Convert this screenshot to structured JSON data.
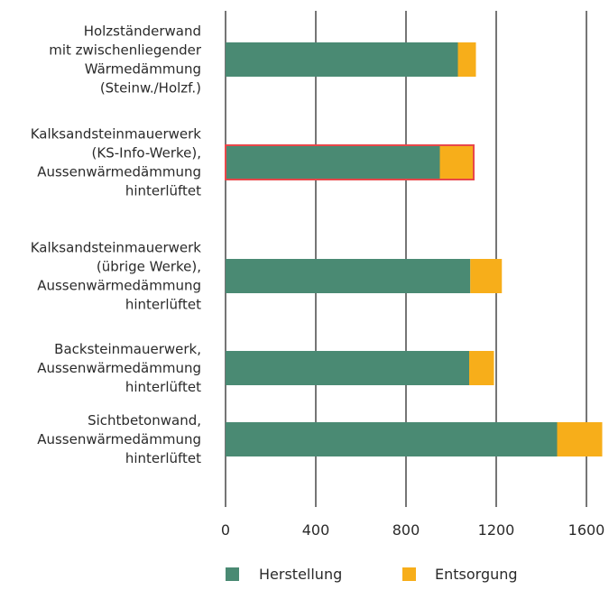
{
  "chart_data": {
    "type": "bar",
    "orientation": "horizontal",
    "stacked": true,
    "categories": [
      [
        "Holzständerwand",
        "mit zwischenliegender",
        "Wärmedämmung",
        "(Steinw./Holzf.)"
      ],
      [
        "Kalksandsteinmauerwerk",
        "(KS-Info-Werke),",
        "Aussenwärmedämmung",
        "hinterlüftet"
      ],
      [
        "Kalksandsteinmauerwerk",
        "(übrige Werke),",
        "Aussenwärmedämmung",
        "hinterlüftet"
      ],
      [
        "Backsteinmauerwerk,",
        "Aussenwärmedämmung",
        "hinterlüftet"
      ],
      [
        "Sichtbetonwand,",
        "Aussenwärmedämmung",
        "hinterlüftet"
      ]
    ],
    "series": [
      {
        "name": "Herstellung",
        "color": "#4a8a73",
        "values": [
          1030,
          950,
          1085,
          1080,
          1470
        ]
      },
      {
        "name": "Entsorgung",
        "color": "#f7ae1a",
        "values": [
          80,
          150,
          140,
          110,
          200
        ]
      }
    ],
    "highlighted_category_index": 1,
    "highlight_color": "#e8474a",
    "xlim": [
      0,
      1700
    ],
    "xticks": [
      0,
      400,
      800,
      1200,
      1600
    ],
    "grid": true,
    "legend_position": "bottom",
    "title": "",
    "xlabel": "",
    "ylabel": ""
  }
}
